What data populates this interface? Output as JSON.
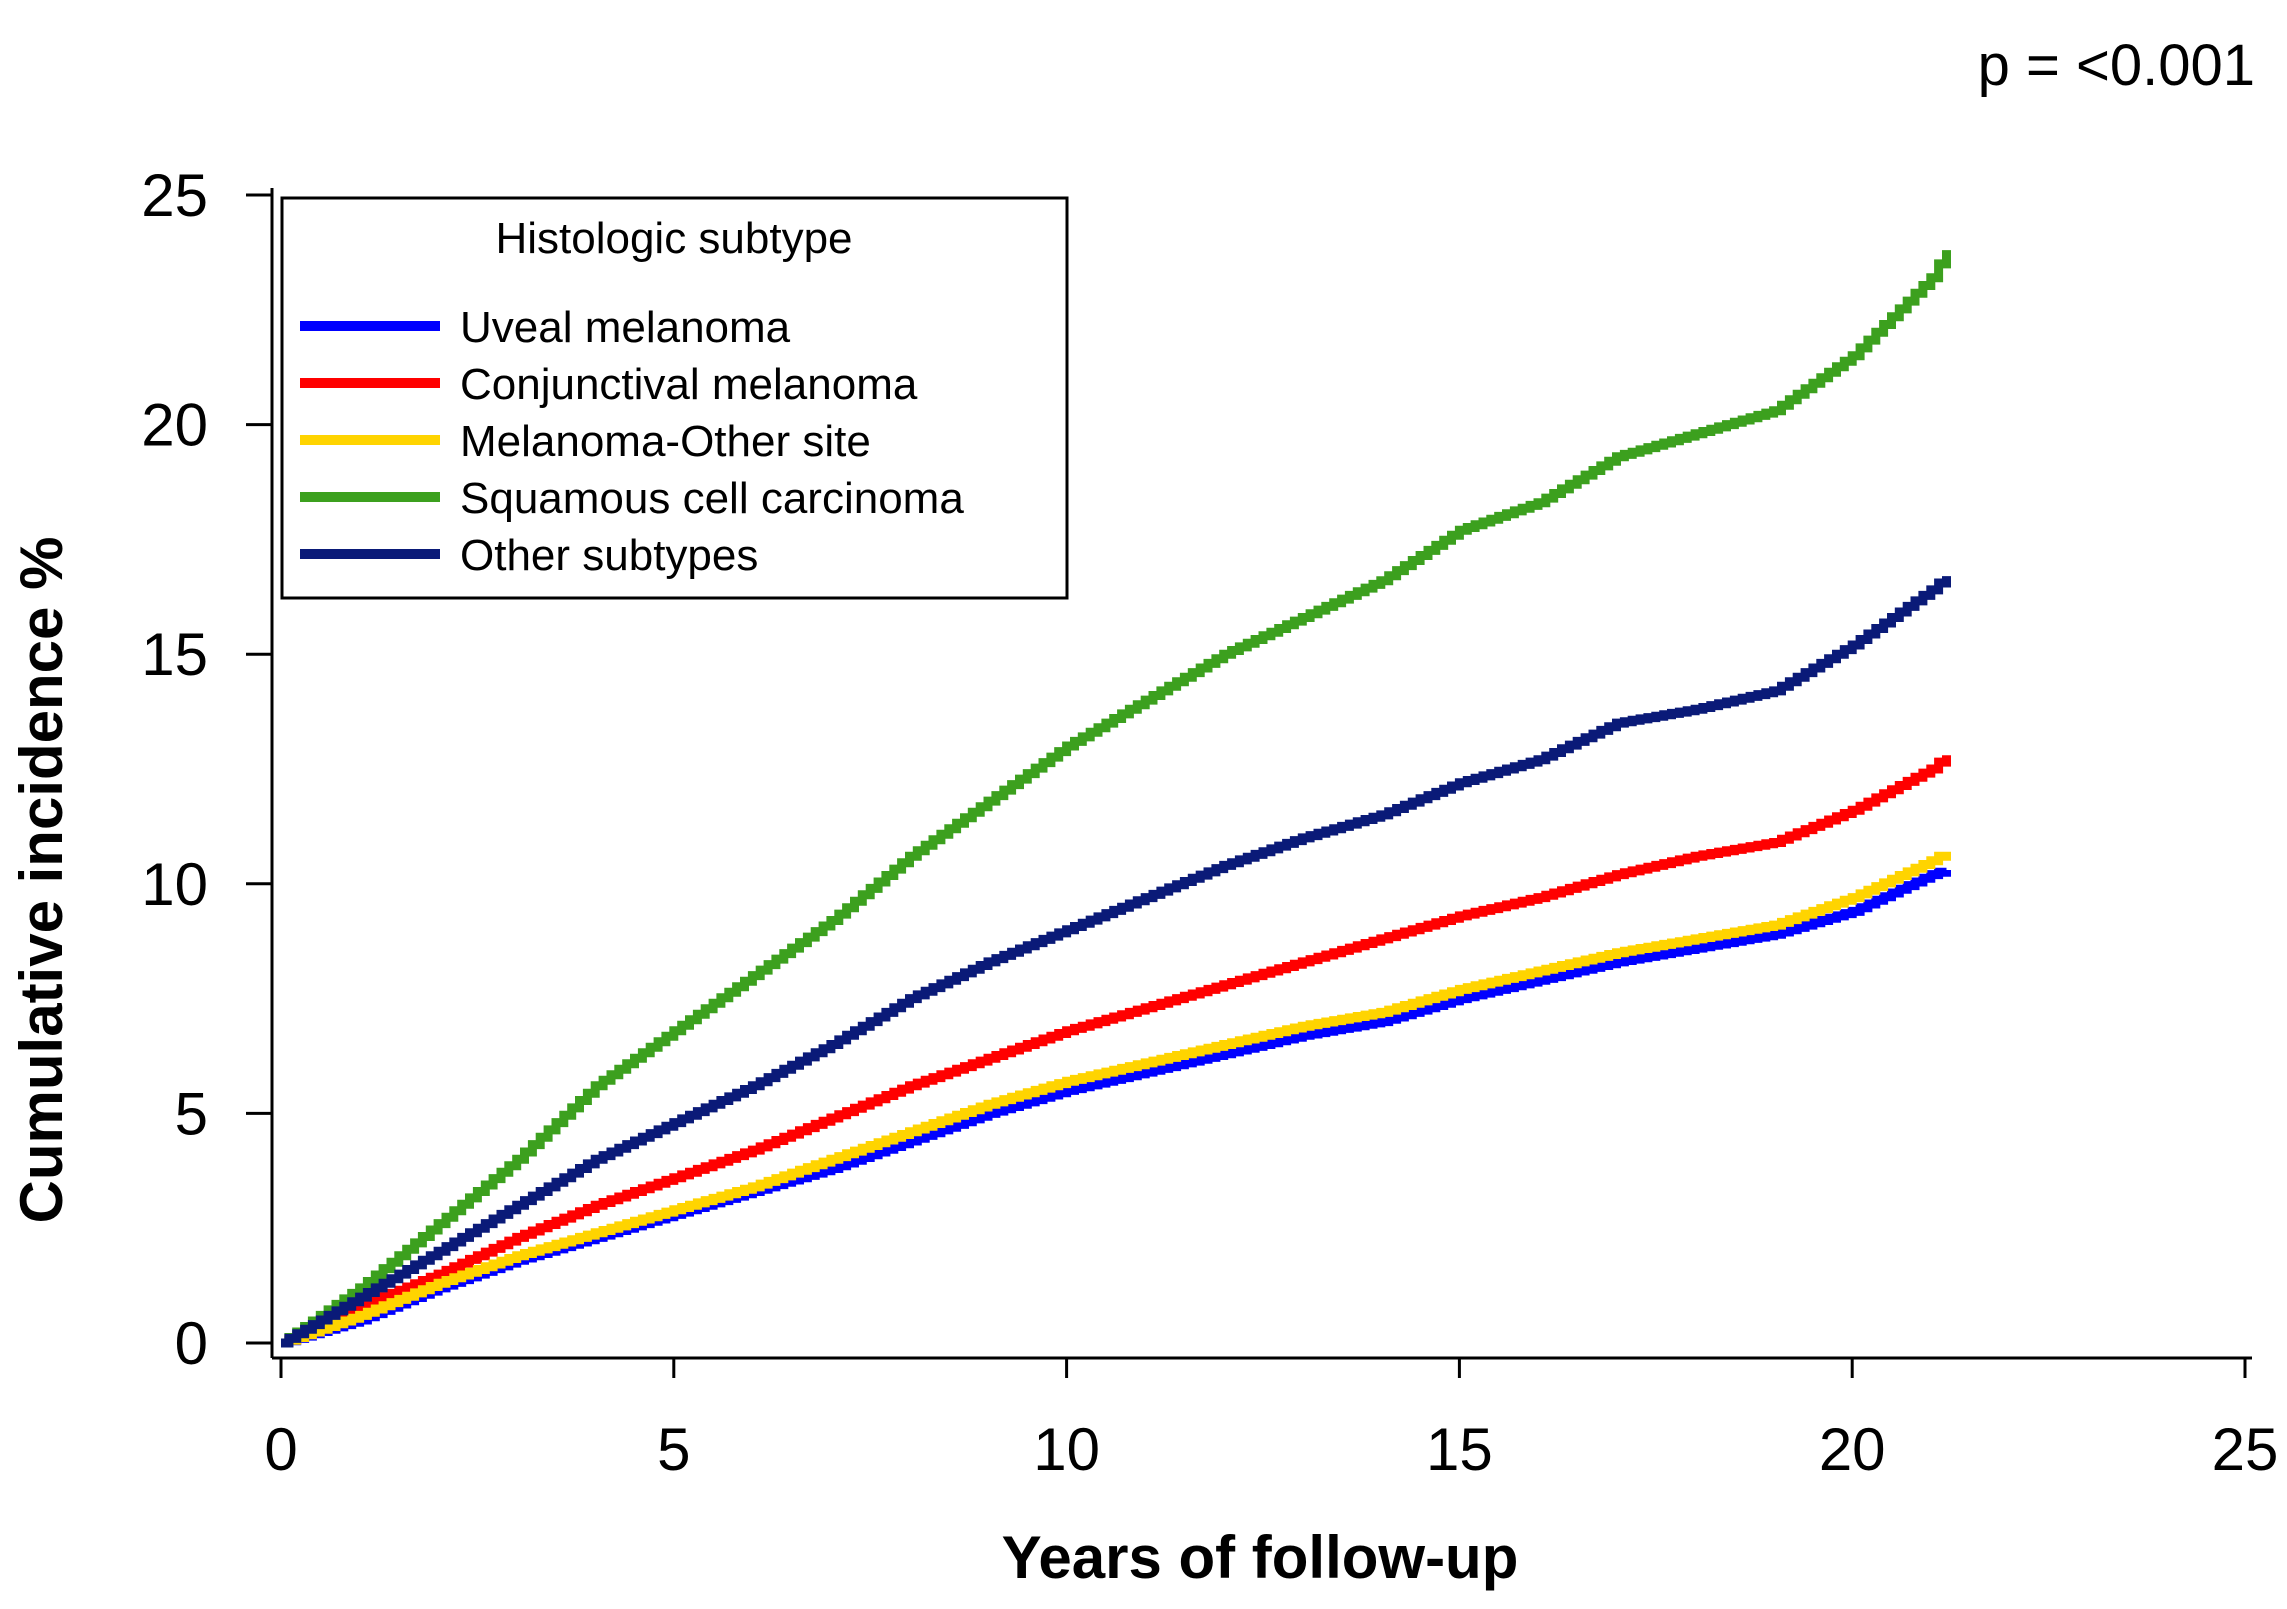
{
  "chart_data": {
    "type": "line",
    "title": "",
    "annotation": "p = <0.001",
    "xlabel": "Years of follow-up",
    "ylabel": "Cumulative incidence %",
    "xlim": [
      0,
      25
    ],
    "ylim": [
      0,
      25
    ],
    "xticks": [
      0,
      5,
      10,
      15,
      20,
      25
    ],
    "yticks": [
      0,
      5,
      10,
      15,
      20,
      25
    ],
    "grid": false,
    "legend": {
      "title": "Histologic subtype",
      "position": "top-left"
    },
    "series": [
      {
        "name": "Uveal melanoma",
        "color": "#0000ff",
        "x": [
          0,
          1,
          2,
          3,
          4,
          5,
          6,
          7,
          8,
          9,
          10,
          11,
          12,
          13,
          14,
          15,
          16,
          17,
          18,
          19,
          20,
          21,
          21.2
        ],
        "y": [
          0,
          0.5,
          1.2,
          1.8,
          2.3,
          2.8,
          3.3,
          3.8,
          4.4,
          5.0,
          5.5,
          5.9,
          6.3,
          6.7,
          7.0,
          7.5,
          7.9,
          8.3,
          8.6,
          8.9,
          9.4,
          10.2,
          10.3
        ]
      },
      {
        "name": "Conjunctival melanoma",
        "color": "#ff0000",
        "x": [
          0,
          1,
          2,
          3,
          4,
          5,
          6,
          7,
          8,
          9,
          10,
          11,
          12,
          13,
          14,
          15,
          16,
          17,
          18,
          19,
          20,
          21,
          21.2
        ],
        "y": [
          0,
          0.8,
          1.5,
          2.3,
          3.0,
          3.6,
          4.2,
          4.9,
          5.6,
          6.2,
          6.8,
          7.3,
          7.8,
          8.3,
          8.8,
          9.3,
          9.7,
          10.2,
          10.6,
          10.9,
          11.6,
          12.5,
          12.8
        ]
      },
      {
        "name": "Melanoma-Other site",
        "color": "#ffd400",
        "x": [
          0,
          1,
          2,
          3,
          4,
          5,
          6,
          7,
          8,
          9,
          10,
          11,
          12,
          13,
          14,
          15,
          16,
          17,
          18,
          19,
          20,
          21,
          21.2
        ],
        "y": [
          0,
          0.6,
          1.3,
          1.9,
          2.4,
          2.9,
          3.4,
          4.0,
          4.6,
          5.2,
          5.7,
          6.1,
          6.5,
          6.9,
          7.2,
          7.7,
          8.1,
          8.5,
          8.8,
          9.1,
          9.7,
          10.5,
          10.7
        ]
      },
      {
        "name": "Squamous cell carcinoma",
        "color": "#3ca01e",
        "x": [
          0,
          1,
          2,
          3,
          4,
          5,
          6,
          7,
          8,
          9,
          10,
          11,
          12,
          13,
          14,
          15,
          16,
          17,
          18,
          19,
          20,
          21,
          21.2
        ],
        "y": [
          0,
          1.2,
          2.6,
          4.0,
          5.6,
          6.8,
          8.0,
          9.2,
          10.6,
          11.8,
          13.0,
          14.0,
          15.0,
          15.8,
          16.6,
          17.7,
          18.3,
          19.3,
          19.8,
          20.3,
          21.5,
          23.2,
          23.8
        ]
      },
      {
        "name": "Other subtypes",
        "color": "#0a1a78",
        "x": [
          0,
          1,
          2,
          3,
          4,
          5,
          6,
          7,
          8,
          9,
          10,
          11,
          12,
          13,
          14,
          15,
          16,
          17,
          18,
          19,
          20,
          21,
          21.2
        ],
        "y": [
          0,
          1.0,
          2.0,
          3.0,
          4.0,
          4.8,
          5.6,
          6.5,
          7.5,
          8.3,
          9.0,
          9.7,
          10.4,
          11.0,
          11.5,
          12.2,
          12.7,
          13.5,
          13.8,
          14.2,
          15.2,
          16.4,
          16.7
        ]
      }
    ]
  }
}
